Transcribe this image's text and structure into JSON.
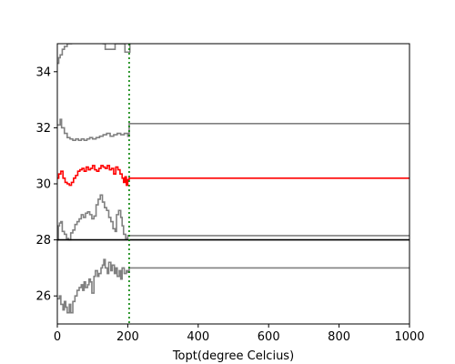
{
  "chart_data": {
    "type": "line",
    "title": "",
    "xlabel": "Topt(degree Celcius)",
    "ylabel": "",
    "xlim": [
      0,
      1000
    ],
    "ylim": [
      25,
      35
    ],
    "xticks": [
      0,
      200,
      400,
      600,
      800,
      1000
    ],
    "yticks": [
      26,
      28,
      30,
      32,
      34
    ],
    "grid": false,
    "legend": "none",
    "series": [
      {
        "color": "#808080",
        "step": true,
        "points": [
          [
            0,
            34.3
          ],
          [
            4,
            34.5
          ],
          [
            8,
            34.6
          ],
          [
            14,
            34.8
          ],
          [
            20,
            34.9
          ],
          [
            28,
            35.0
          ],
          [
            40,
            35.1
          ],
          [
            70,
            35.1
          ],
          [
            100,
            35.05
          ],
          [
            130,
            35.0
          ],
          [
            136,
            34.8
          ],
          [
            158,
            34.8
          ],
          [
            164,
            35.0
          ],
          [
            186,
            35.0
          ],
          [
            192,
            34.7
          ],
          [
            202,
            34.7
          ],
          [
            206,
            35.2
          ],
          [
            1000,
            35.2
          ]
        ]
      },
      {
        "color": "#808080",
        "step": true,
        "points": [
          [
            0,
            32.1
          ],
          [
            8,
            32.3
          ],
          [
            12,
            32.0
          ],
          [
            20,
            31.8
          ],
          [
            28,
            31.65
          ],
          [
            36,
            31.6
          ],
          [
            44,
            31.55
          ],
          [
            52,
            31.6
          ],
          [
            60,
            31.55
          ],
          [
            68,
            31.6
          ],
          [
            76,
            31.55
          ],
          [
            84,
            31.6
          ],
          [
            92,
            31.65
          ],
          [
            100,
            31.6
          ],
          [
            110,
            31.65
          ],
          [
            120,
            31.7
          ],
          [
            130,
            31.75
          ],
          [
            140,
            31.8
          ],
          [
            150,
            31.7
          ],
          [
            160,
            31.75
          ],
          [
            170,
            31.8
          ],
          [
            180,
            31.75
          ],
          [
            190,
            31.8
          ],
          [
            200,
            31.7
          ],
          [
            204,
            32.15
          ],
          [
            1000,
            32.15
          ]
        ]
      },
      {
        "color": "#ff0000",
        "step": true,
        "points": [
          [
            0,
            30.2
          ],
          [
            4,
            30.35
          ],
          [
            10,
            30.45
          ],
          [
            16,
            30.2
          ],
          [
            22,
            30.05
          ],
          [
            28,
            30.0
          ],
          [
            34,
            29.95
          ],
          [
            40,
            30.05
          ],
          [
            46,
            30.2
          ],
          [
            52,
            30.3
          ],
          [
            58,
            30.45
          ],
          [
            64,
            30.5
          ],
          [
            70,
            30.55
          ],
          [
            76,
            30.45
          ],
          [
            82,
            30.6
          ],
          [
            88,
            30.5
          ],
          [
            94,
            30.55
          ],
          [
            100,
            30.65
          ],
          [
            106,
            30.5
          ],
          [
            112,
            30.45
          ],
          [
            118,
            30.55
          ],
          [
            124,
            30.65
          ],
          [
            130,
            30.6
          ],
          [
            136,
            30.55
          ],
          [
            142,
            30.65
          ],
          [
            148,
            30.5
          ],
          [
            154,
            30.55
          ],
          [
            160,
            30.35
          ],
          [
            166,
            30.6
          ],
          [
            172,
            30.5
          ],
          [
            178,
            30.35
          ],
          [
            184,
            30.2
          ],
          [
            188,
            30.05
          ],
          [
            192,
            30.25
          ],
          [
            196,
            29.95
          ],
          [
            200,
            30.15
          ],
          [
            204,
            30.2
          ],
          [
            1000,
            30.2
          ]
        ]
      },
      {
        "color": "#808080",
        "step": true,
        "points": [
          [
            0,
            28.0
          ],
          [
            3,
            28.5
          ],
          [
            6,
            28.6
          ],
          [
            10,
            28.65
          ],
          [
            14,
            28.3
          ],
          [
            20,
            28.2
          ],
          [
            26,
            28.05
          ],
          [
            32,
            28.0
          ],
          [
            38,
            28.25
          ],
          [
            44,
            28.35
          ],
          [
            50,
            28.55
          ],
          [
            56,
            28.65
          ],
          [
            62,
            28.75
          ],
          [
            68,
            28.9
          ],
          [
            74,
            28.8
          ],
          [
            80,
            28.95
          ],
          [
            86,
            29.0
          ],
          [
            92,
            28.9
          ],
          [
            98,
            28.75
          ],
          [
            104,
            28.85
          ],
          [
            110,
            29.25
          ],
          [
            116,
            29.45
          ],
          [
            122,
            29.6
          ],
          [
            128,
            29.35
          ],
          [
            134,
            29.15
          ],
          [
            140,
            29.05
          ],
          [
            146,
            28.8
          ],
          [
            152,
            28.65
          ],
          [
            158,
            28.4
          ],
          [
            164,
            28.3
          ],
          [
            168,
            28.9
          ],
          [
            174,
            29.05
          ],
          [
            180,
            28.8
          ],
          [
            184,
            28.5
          ],
          [
            188,
            28.2
          ],
          [
            194,
            28.05
          ],
          [
            200,
            28.15
          ],
          [
            204,
            28.15
          ],
          [
            1000,
            28.15
          ]
        ]
      },
      {
        "color": "#000000",
        "step": true,
        "points": [
          [
            0,
            28.0
          ],
          [
            1000,
            28.0
          ]
        ]
      },
      {
        "color": "#808080",
        "step": true,
        "points": [
          [
            0,
            25.9
          ],
          [
            6,
            26.0
          ],
          [
            10,
            25.7
          ],
          [
            16,
            25.5
          ],
          [
            20,
            25.8
          ],
          [
            24,
            25.6
          ],
          [
            28,
            25.4
          ],
          [
            34,
            25.7
          ],
          [
            38,
            25.4
          ],
          [
            44,
            25.8
          ],
          [
            50,
            26.0
          ],
          [
            56,
            26.2
          ],
          [
            62,
            26.3
          ],
          [
            68,
            26.4
          ],
          [
            72,
            26.2
          ],
          [
            76,
            26.5
          ],
          [
            80,
            26.3
          ],
          [
            86,
            26.4
          ],
          [
            90,
            26.6
          ],
          [
            94,
            26.5
          ],
          [
            98,
            26.1
          ],
          [
            104,
            26.7
          ],
          [
            108,
            26.9
          ],
          [
            114,
            26.7
          ],
          [
            118,
            26.8
          ],
          [
            124,
            27.0
          ],
          [
            128,
            27.1
          ],
          [
            132,
            27.3
          ],
          [
            136,
            27.0
          ],
          [
            142,
            26.8
          ],
          [
            146,
            27.2
          ],
          [
            152,
            26.9
          ],
          [
            156,
            27.1
          ],
          [
            162,
            26.8
          ],
          [
            166,
            27.0
          ],
          [
            170,
            26.7
          ],
          [
            176,
            26.9
          ],
          [
            180,
            26.6
          ],
          [
            184,
            27.0
          ],
          [
            190,
            26.8
          ],
          [
            196,
            26.9
          ],
          [
            200,
            26.85
          ],
          [
            204,
            27.0
          ],
          [
            1000,
            27.0
          ]
        ]
      }
    ],
    "vline": {
      "x": 204,
      "color": "#008000",
      "style": "dotted"
    }
  }
}
